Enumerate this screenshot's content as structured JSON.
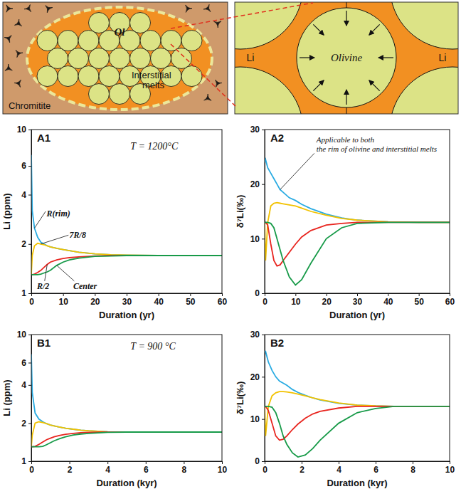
{
  "diagram": {
    "left_panel": {
      "olivine_label": "Ol",
      "melt_label": [
        "Interstitial",
        "melts"
      ],
      "matrix_label": "Chromitite"
    },
    "right_panel": {
      "diffusion_labels": [
        "Li",
        "Li"
      ],
      "grain_label": "Olivine"
    }
  },
  "chart_data": [
    {
      "type": "line",
      "title": "A1",
      "annotations": [
        "T = 1200°C"
      ],
      "xlabel": "Duration (yr)",
      "ylabel": "Li (ppm)",
      "log": "y",
      "x": [
        0,
        0.3,
        1,
        2,
        3,
        4,
        5,
        6,
        8,
        10,
        12,
        15,
        20,
        25,
        30,
        40,
        50,
        60
      ],
      "xlim": [
        0,
        60
      ],
      "xticks": [
        0,
        10,
        20,
        30,
        40,
        50,
        60
      ],
      "ylim": [
        1,
        10
      ],
      "yticks": [
        1,
        2,
        4,
        6,
        10
      ],
      "series": [
        {
          "name": "R(rim)",
          "color": "#29abe2",
          "values": [
            7,
            3.2,
            2.5,
            2.2,
            2.05,
            2,
            1.95,
            1.92,
            1.88,
            1.85,
            1.82,
            1.78,
            1.74,
            1.72,
            1.71,
            1.7,
            1.7,
            1.7
          ]
        },
        {
          "name": "7R/8",
          "color": "#f2c200",
          "values": [
            1.3,
            1.7,
            1.95,
            2.02,
            2,
            1.98,
            1.95,
            1.92,
            1.88,
            1.85,
            1.82,
            1.78,
            1.74,
            1.72,
            1.71,
            1.7,
            1.7,
            1.7
          ]
        },
        {
          "name": "R/2",
          "color": "#e8251f",
          "values": [
            1.3,
            1.3,
            1.31,
            1.34,
            1.38,
            1.44,
            1.5,
            1.55,
            1.6,
            1.63,
            1.65,
            1.67,
            1.69,
            1.7,
            1.7,
            1.7,
            1.7,
            1.7
          ]
        },
        {
          "name": "Center",
          "color": "#179a48",
          "values": [
            1.3,
            1.3,
            1.3,
            1.3,
            1.31,
            1.33,
            1.35,
            1.38,
            1.48,
            1.55,
            1.6,
            1.64,
            1.68,
            1.69,
            1.7,
            1.7,
            1.7,
            1.7
          ]
        }
      ]
    },
    {
      "type": "line",
      "title": "A2",
      "annotations": [
        [
          "Applicable to both",
          "the rim of olivine and interstitial melts"
        ]
      ],
      "xlabel": "Duration (yr)",
      "ylabel": "δ⁷Li(‰)",
      "x": [
        0,
        0.3,
        1,
        2,
        3,
        4,
        5,
        6,
        8,
        10,
        12,
        15,
        20,
        25,
        30,
        40,
        50,
        60
      ],
      "xlim": [
        0,
        60
      ],
      "xticks": [
        0,
        10,
        20,
        30,
        40,
        50,
        60
      ],
      "ylim": [
        0,
        30
      ],
      "yticks": [
        0,
        10,
        20,
        30
      ],
      "series": [
        {
          "color": "#29abe2",
          "values": [
            24,
            24.5,
            23,
            22,
            21,
            20,
            19,
            18.5,
            17.5,
            17,
            16.3,
            15.5,
            14.5,
            13.8,
            13.4,
            13.1,
            13,
            13
          ]
        },
        {
          "color": "#f2c200",
          "values": [
            13,
            6,
            13,
            16,
            16.5,
            16.6,
            16.5,
            16.4,
            16.2,
            16,
            15.6,
            15,
            14.3,
            13.7,
            13.4,
            13.1,
            13,
            13
          ]
        },
        {
          "color": "#e8251f",
          "values": [
            13,
            13,
            12.5,
            9,
            6,
            5,
            5.2,
            6,
            7.5,
            9,
            10.3,
            11.5,
            12.5,
            12.8,
            13,
            13,
            13,
            13
          ]
        },
        {
          "color": "#179a48",
          "values": [
            13,
            13,
            13,
            12.8,
            12,
            10,
            8,
            6,
            3,
            1.5,
            2.5,
            5.5,
            10,
            12,
            12.8,
            13,
            13,
            13
          ]
        }
      ]
    },
    {
      "type": "line",
      "title": "B1",
      "annotations": [
        "T = 900 °C"
      ],
      "xlabel": "Duration (kyr)",
      "ylabel": "Li (ppm)",
      "log": "y",
      "x": [
        0,
        0.05,
        0.2,
        0.4,
        0.6,
        0.8,
        1,
        1.2,
        1.5,
        1.8,
        2.2,
        2.6,
        3,
        4,
        5,
        6,
        7,
        8,
        10
      ],
      "xlim": [
        0,
        10
      ],
      "xticks": [
        0,
        2,
        4,
        6,
        8,
        10
      ],
      "ylim": [
        1,
        10
      ],
      "yticks": [
        1,
        2,
        4,
        6,
        10
      ],
      "series": [
        {
          "color": "#29abe2",
          "values": [
            7,
            3.5,
            2.4,
            2.15,
            2.05,
            1.98,
            1.93,
            1.9,
            1.86,
            1.82,
            1.79,
            1.76,
            1.74,
            1.71,
            1.7,
            1.7,
            1.7,
            1.7,
            1.7
          ]
        },
        {
          "color": "#f2c200",
          "values": [
            1.3,
            1.6,
            2,
            2.05,
            2.02,
            1.98,
            1.93,
            1.9,
            1.86,
            1.82,
            1.79,
            1.76,
            1.74,
            1.71,
            1.7,
            1.7,
            1.7,
            1.7,
            1.7
          ]
        },
        {
          "color": "#e8251f",
          "values": [
            1.3,
            1.3,
            1.31,
            1.36,
            1.42,
            1.48,
            1.52,
            1.56,
            1.6,
            1.63,
            1.66,
            1.68,
            1.69,
            1.7,
            1.7,
            1.7,
            1.7,
            1.7,
            1.7
          ]
        },
        {
          "color": "#179a48",
          "values": [
            1.3,
            1.3,
            1.3,
            1.3,
            1.31,
            1.35,
            1.4,
            1.45,
            1.51,
            1.56,
            1.61,
            1.64,
            1.66,
            1.69,
            1.7,
            1.7,
            1.7,
            1.7,
            1.7
          ]
        }
      ]
    },
    {
      "type": "line",
      "title": "B2",
      "xlabel": "Duration (kyr)",
      "ylabel": "δ⁷Li(‰)",
      "x": [
        0,
        0.05,
        0.2,
        0.4,
        0.6,
        0.8,
        1,
        1.2,
        1.5,
        1.8,
        2.2,
        2.6,
        3,
        4,
        5,
        6,
        7,
        8,
        10
      ],
      "xlim": [
        0,
        10
      ],
      "xticks": [
        0,
        2,
        4,
        6,
        8,
        10
      ],
      "ylim": [
        0,
        30
      ],
      "yticks": [
        0,
        10,
        20,
        30
      ],
      "series": [
        {
          "color": "#29abe2",
          "values": [
            26,
            26,
            23.5,
            21.5,
            20,
            19,
            18.5,
            18,
            17,
            16.3,
            15.6,
            15,
            14.5,
            13.7,
            13.3,
            13.1,
            13,
            13,
            13
          ]
        },
        {
          "color": "#f2c200",
          "values": [
            13,
            6,
            13,
            15.5,
            16.2,
            16.5,
            16.5,
            16.4,
            16.2,
            15.9,
            15.5,
            15,
            14.6,
            13.8,
            13.3,
            13.1,
            13,
            13,
            13
          ]
        },
        {
          "color": "#e8251f",
          "values": [
            13,
            13,
            12,
            9,
            6,
            5,
            5.2,
            6,
            7.5,
            8.8,
            10.2,
            11.2,
            11.8,
            12.6,
            13,
            13,
            13,
            13,
            13
          ]
        },
        {
          "color": "#179a48",
          "values": [
            13,
            13,
            13,
            12.8,
            11.5,
            9,
            6,
            4,
            2,
            1,
            1.5,
            3,
            5,
            9,
            11.5,
            12.5,
            13,
            13,
            13
          ]
        }
      ]
    }
  ]
}
